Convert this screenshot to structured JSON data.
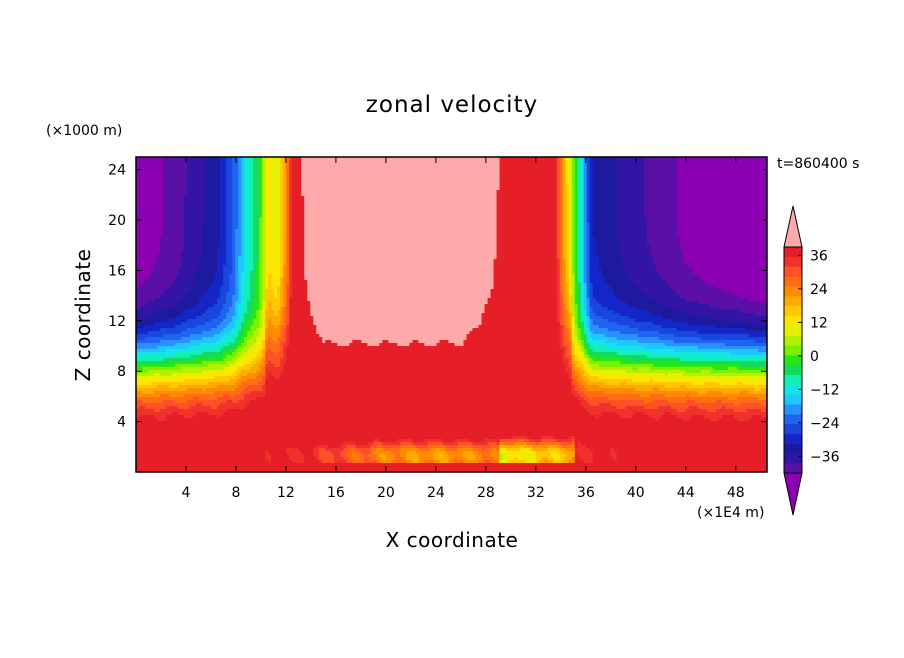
{
  "chart_data": {
    "type": "heatmap",
    "subtype": "filled-contour",
    "title": "zonal velocity",
    "xlabel": "X coordinate",
    "ylabel": "Z coordinate",
    "x_unit_label": "(×1E4 m)",
    "y_unit_label": "(×1000 m)",
    "time_label": "t=860400 s",
    "xlim": [
      0,
      50.5
    ],
    "ylim": [
      0,
      25
    ],
    "x_ticks": [
      4,
      8,
      12,
      16,
      20,
      24,
      28,
      32,
      36,
      40,
      44,
      48
    ],
    "y_ticks": [
      4,
      8,
      12,
      16,
      20,
      24
    ],
    "colorbar": {
      "levels": [
        -42,
        -39,
        -36,
        -33,
        -30,
        -27,
        -24,
        -21,
        -18,
        -15,
        -12,
        -9,
        -6,
        -3,
        0,
        3,
        6,
        9,
        12,
        15,
        18,
        21,
        24,
        27,
        30,
        33,
        36,
        39
      ],
      "tick_values": [
        36,
        24,
        12,
        0,
        -12,
        -24,
        -36
      ],
      "tick_labels": [
        "36",
        "24",
        "12",
        "0",
        "−12",
        "−24",
        "−36"
      ],
      "colors": [
        "#5a0fa6",
        "#3214a6",
        "#1e1aa0",
        "#1426c8",
        "#1946dc",
        "#1e64f0",
        "#2890ff",
        "#1ec8ff",
        "#14e6e6",
        "#10f0b4",
        "#14dc5a",
        "#28e614",
        "#78f000",
        "#b4f000",
        "#e6f000",
        "#ffe600",
        "#ffc800",
        "#ffaa00",
        "#ff8c00",
        "#ff6e14",
        "#ff5028",
        "#f0322d",
        "#e61e28"
      ],
      "under_color": "#8c00b4",
      "over_color": "#ffaaaa"
    },
    "field_description_values": {
      "x_profile_x": [
        0,
        3,
        6.5,
        7.8,
        8.8,
        9.8,
        10.6,
        11.3,
        12,
        13,
        15,
        20,
        26,
        29,
        31,
        32.6,
        33.6,
        34.6,
        35.4,
        36.5,
        39,
        44,
        50.5
      ],
      "x_profile_amplitude": [
        -45,
        -41,
        -34,
        -27,
        -16,
        -9,
        4,
        0,
        12,
        38,
        44,
        44,
        44,
        39,
        32,
        30,
        24,
        4,
        -12,
        -33,
        -37,
        -43,
        -47
      ],
      "surface_value": 33,
      "mid_level_z": 6.2
    }
  }
}
